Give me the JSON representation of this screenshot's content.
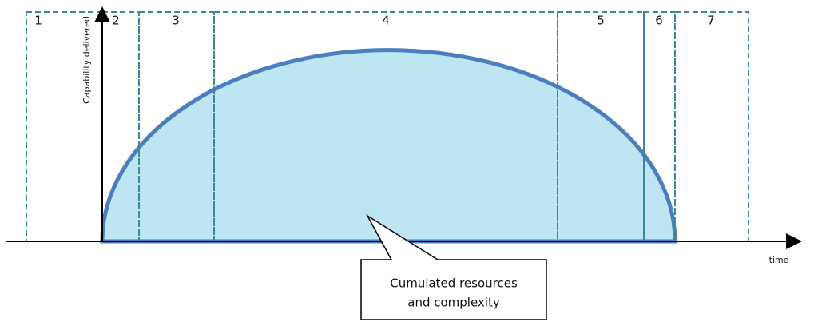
{
  "phases": [
    "1",
    "2",
    "3",
    "4",
    "5",
    "6",
    "7"
  ],
  "axes": {
    "y_label": "Capability delivered",
    "x_label": "time"
  },
  "callout": {
    "lines": [
      "Cumulated resources",
      "and complexity"
    ]
  }
}
